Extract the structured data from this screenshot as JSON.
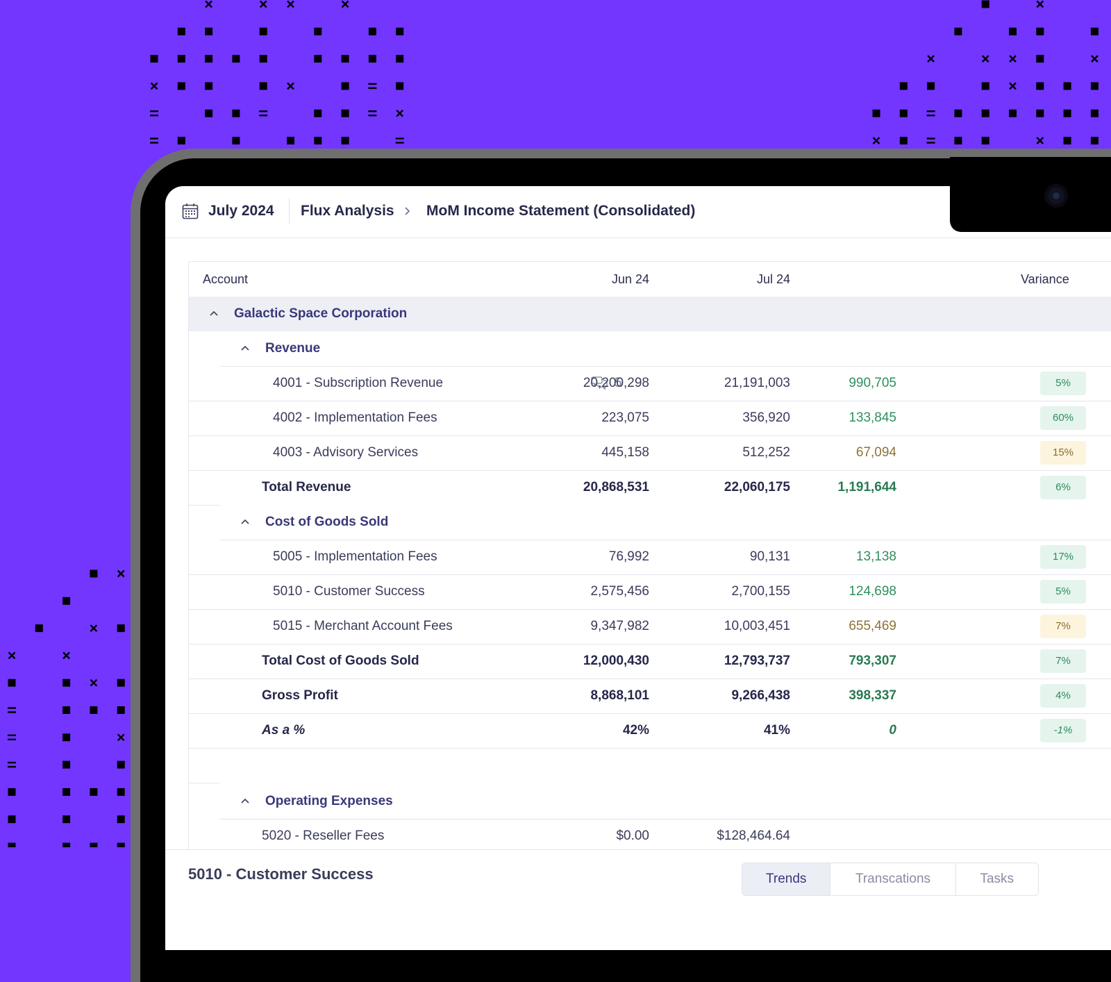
{
  "header": {
    "date": "July 2024",
    "breadcrumb": [
      "Flux Analysis",
      "MoM Income Statement (Consolidated)"
    ]
  },
  "table": {
    "columns": [
      "Account",
      "Jun 24",
      "Jul 24",
      "Variance"
    ],
    "company": "Galactic Space Corporation",
    "revenue": {
      "label": "Revenue",
      "rows": [
        {
          "name": "4001 - Subscription Revenue",
          "comments": "5",
          "jun": "20,200,298",
          "jul": "21,191,003",
          "var": "990,705",
          "pct": "5%"
        },
        {
          "name": "4002 - Implementation Fees",
          "jun": "223,075",
          "jul": "356,920",
          "var": "133,845",
          "pct": "60%"
        },
        {
          "name": "4003 - Advisory Services",
          "jun": "445,158",
          "jul": "512,252",
          "var": "67,094",
          "pct": "15%"
        }
      ],
      "total": {
        "name": "Total Revenue",
        "jun": "20,868,531",
        "jul": "22,060,175",
        "var": "1,191,644",
        "pct": "6%"
      }
    },
    "cogs": {
      "label": "Cost of Goods Sold",
      "rows": [
        {
          "name": "5005 - Implementation Fees",
          "jun": "76,992",
          "jul": "90,131",
          "var": "13,138",
          "pct": "17%"
        },
        {
          "name": "5010 - Customer Success",
          "jun": "2,575,456",
          "jul": "2,700,155",
          "var": "124,698",
          "pct": "5%"
        },
        {
          "name": "5015 - Merchant Account Fees",
          "jun": "9,347,982",
          "jul": "10,003,451",
          "var": "655,469",
          "pct": "7%"
        }
      ],
      "total": {
        "name": "Total Cost of Goods Sold",
        "jun": "12,000,430",
        "jul": "12,793,737",
        "var": "793,307",
        "pct": "7%"
      }
    },
    "gross_profit": {
      "name": "Gross Profit",
      "jun": "8,868,101",
      "jul": "9,266,438",
      "var": "398,337",
      "pct": "4%"
    },
    "as_pct": {
      "name": "As a %",
      "jun": "42%",
      "jul": "41%",
      "var": "0",
      "pct": "-1%"
    },
    "opex": {
      "label": "Operating Expenses",
      "rows": [
        {
          "name": "5020 - Reseller Fees",
          "jun": "$0.00",
          "jul": "$128,464.64"
        }
      ]
    }
  },
  "footer": {
    "title": "5010 - Customer Success",
    "tabs": [
      "Trends",
      "Transcations",
      "Tasks"
    ],
    "active_tab": "Trends"
  },
  "colors": {
    "background": "#7236ff",
    "positive": "#2f8f5d",
    "warning": "#8c7238"
  }
}
